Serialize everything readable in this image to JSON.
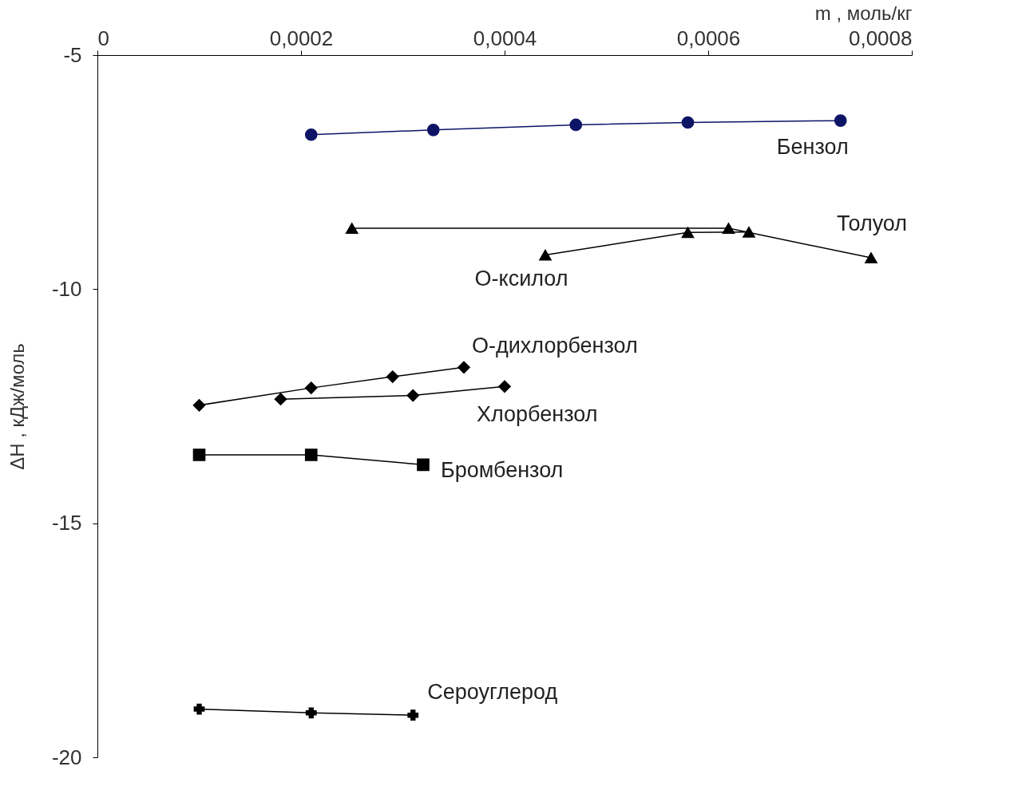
{
  "chart_data": {
    "type": "line",
    "xlabel": "m , моль/кг",
    "ylabel": "ΔH , кДж/моль",
    "xlim": [
      0,
      0.0008
    ],
    "ylim": [
      -20,
      -5
    ],
    "xticks": [
      {
        "value": 0,
        "label": "0"
      },
      {
        "value": 0.0002,
        "label": "0,0002"
      },
      {
        "value": 0.0004,
        "label": "0,0004"
      },
      {
        "value": 0.0006,
        "label": "0,0006"
      },
      {
        "value": 0.0008,
        "label": "0,0008"
      }
    ],
    "yticks": [
      -5,
      -10,
      -15,
      -20
    ],
    "grid": false,
    "series": [
      {
        "name": "Бензол",
        "color": "#0d1466",
        "marker": "circle",
        "x": [
          0.00021,
          0.00033,
          0.00047,
          0.00058,
          0.00073
        ],
        "values": [
          -6.7,
          -6.6,
          -6.49,
          -6.44,
          -6.4
        ]
      },
      {
        "name": "Толуол",
        "color": "#000000",
        "marker": "triangle",
        "x": [
          0.00025,
          0.00062,
          0.00076
        ],
        "values": [
          -8.7,
          -8.7,
          -9.33
        ]
      },
      {
        "name": "О-ксилол",
        "color": "#000000",
        "marker": "triangle",
        "x": [
          0.00044,
          0.00058,
          0.00064
        ],
        "values": [
          -9.27,
          -8.79,
          -8.78
        ]
      },
      {
        "name": "О-дихлорбензол",
        "color": "#000000",
        "marker": "diamond",
        "x": [
          0.0001,
          0.00021,
          0.00029,
          0.00036
        ],
        "values": [
          -12.48,
          -12.11,
          -11.87,
          -11.67
        ]
      },
      {
        "name": "Хлорбензол",
        "color": "#000000",
        "marker": "diamond",
        "x": [
          0.00018,
          0.00031,
          0.0004
        ],
        "values": [
          -12.35,
          -12.27,
          -12.08
        ]
      },
      {
        "name": "Бромбензол",
        "color": "#000000",
        "marker": "square",
        "x": [
          0.0001,
          0.00021,
          0.00032
        ],
        "values": [
          -13.54,
          -13.54,
          -13.75
        ]
      },
      {
        "name": "Сероуглерод",
        "color": "#000000",
        "marker": "cross",
        "x": [
          0.0001,
          0.00021,
          0.00031
        ],
        "values": [
          -18.97,
          -19.05,
          -19.1
        ]
      }
    ]
  }
}
